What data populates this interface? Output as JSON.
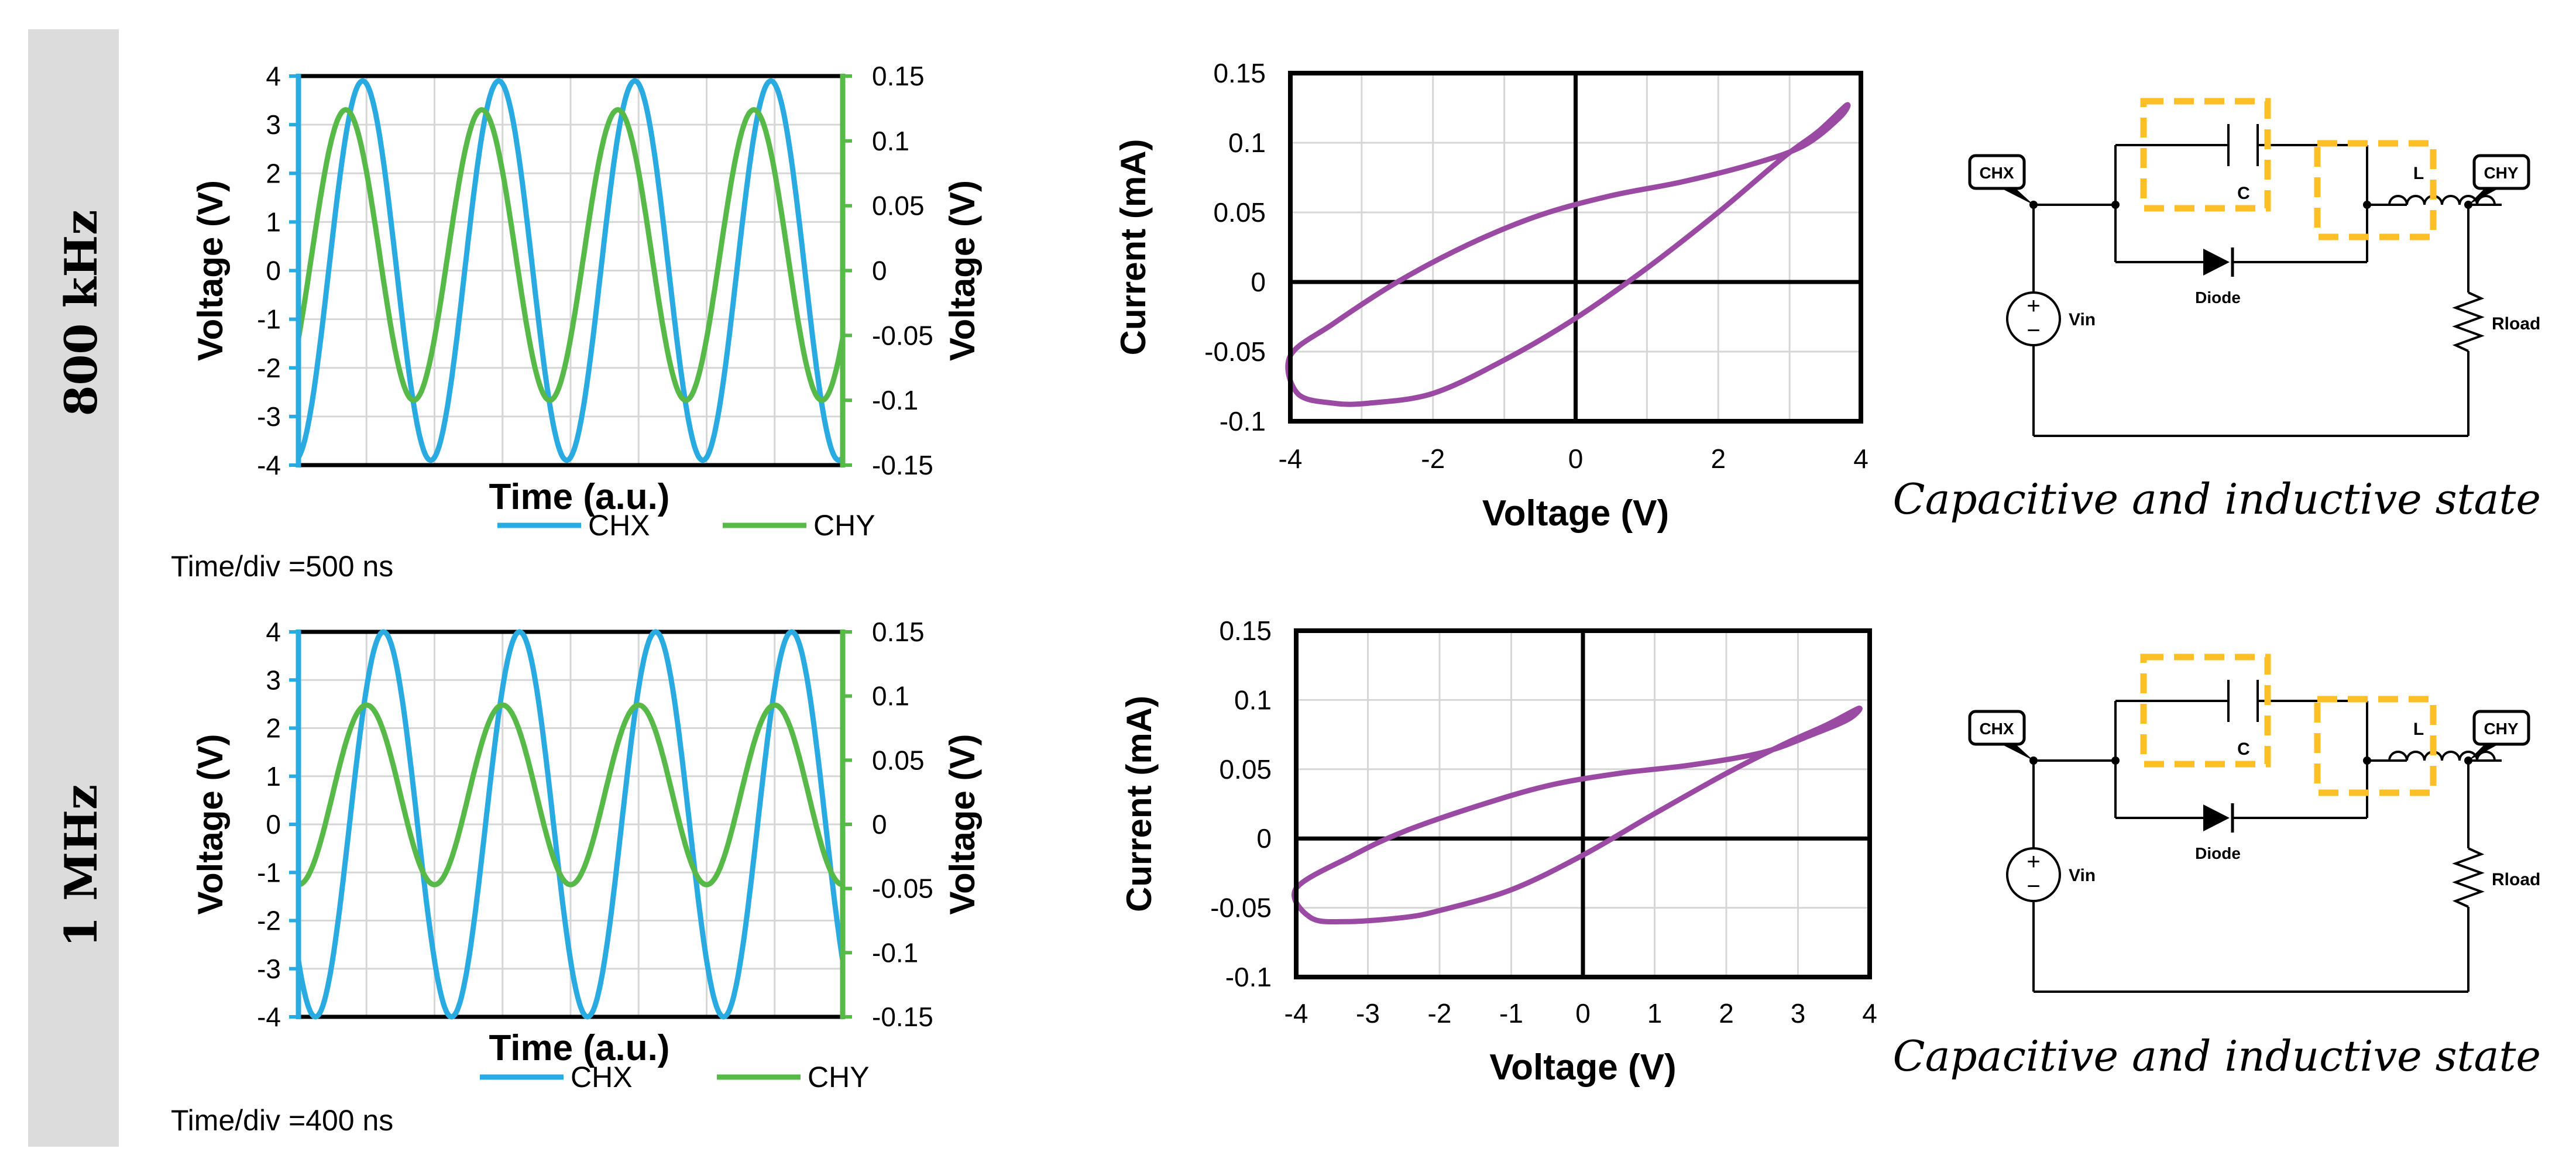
{
  "colors": {
    "chx": "#29abe2",
    "chy": "#57b947",
    "loop": "#9b4aa4",
    "highlight": "#fdbf26",
    "grid": "#d6d6d6",
    "axis": "#000000",
    "row_label_bg": "#dcdcdc"
  },
  "rows": [
    {
      "freq_label": "800 kHz",
      "time_div": "Time/div =500 ns",
      "caption": "Capacitive and inductive state"
    },
    {
      "freq_label": "1 MHz",
      "time_div": "Time/div =400 ns",
      "caption": "Capacitive and inductive state"
    }
  ],
  "schematic": {
    "probe_x": "CHX",
    "probe_y": "CHY",
    "capacitor": "C",
    "inductor": "L",
    "diode": "Diode",
    "source": "Vin",
    "load": "Rload",
    "plus": "+",
    "minus": "−"
  },
  "chart_data": [
    {
      "id": "time-800khz",
      "type": "line",
      "title": "",
      "xlabel": "Time (a.u.)",
      "ylabel_left": "Voltage (V)",
      "ylabel_right": "Voltage (V)",
      "xlim": [
        0,
        8
      ],
      "ylim_left": [
        -4,
        4
      ],
      "ylim_right": [
        -0.15,
        0.15
      ],
      "yticks_left": [
        "4",
        "3",
        "2",
        "1",
        "0",
        "-1",
        "-2",
        "-3",
        "-4"
      ],
      "yticks_right": [
        "0.15",
        "0.1",
        "0.05",
        "0",
        "-0.05",
        "-0.1",
        "-0.15"
      ],
      "legend": [
        "CHX",
        "CHY"
      ],
      "series": [
        {
          "name": "CHX",
          "axis": "left",
          "wave": {
            "amplitude": 3.9,
            "offset": 0,
            "cycles": 4,
            "phase_deg": -80
          }
        },
        {
          "name": "CHY",
          "axis": "right",
          "wave": {
            "amplitude": 0.112,
            "offset": 0.012,
            "cycles": 4,
            "phase_deg": -35
          }
        }
      ]
    },
    {
      "id": "iv-800khz",
      "type": "line",
      "title": "",
      "xlabel": "Voltage (V)",
      "ylabel": "Current (mA)",
      "xlim": [
        -4,
        4
      ],
      "ylim": [
        -0.1,
        0.15
      ],
      "xticks": [
        "-4",
        "-2",
        "0",
        "2",
        "4"
      ],
      "yticks": [
        "0.15",
        "0.1",
        "0.05",
        "0",
        "-0.05",
        "-0.1"
      ],
      "series": [
        {
          "name": "I-V loop",
          "x": [
            -4.0,
            -3.9,
            -3.4,
            -2.9,
            -2.0,
            -1.0,
            0.0,
            1.0,
            2.0,
            2.9,
            3.4,
            3.8,
            3.7,
            3.2,
            2.5,
            1.5,
            0.5,
            -0.5,
            -1.5,
            -2.5,
            -3.4,
            -4.0
          ],
          "y": [
            -0.053,
            -0.08,
            -0.087,
            -0.087,
            -0.08,
            -0.056,
            -0.026,
            0.01,
            0.05,
            0.089,
            0.108,
            0.127,
            0.118,
            0.098,
            0.085,
            0.072,
            0.062,
            0.048,
            0.027,
            0.0,
            -0.03,
            -0.053
          ]
        }
      ]
    },
    {
      "id": "time-1mhz",
      "type": "line",
      "title": "",
      "xlabel": "Time (a.u.)",
      "ylabel_left": "Voltage (V)",
      "ylabel_right": "Voltage (V)",
      "xlim": [
        0,
        8
      ],
      "ylim_left": [
        -4,
        4
      ],
      "ylim_right": [
        -0.15,
        0.15
      ],
      "yticks_left": [
        "4",
        "3",
        "2",
        "1",
        "0",
        "-1",
        "-2",
        "-3",
        "-4"
      ],
      "yticks_right": [
        "0.15",
        "0.1",
        "0.05",
        "0",
        "-0.05",
        "-0.1",
        "-0.15"
      ],
      "legend": [
        "CHX",
        "CHY"
      ],
      "series": [
        {
          "name": "CHX",
          "axis": "left",
          "wave": {
            "amplitude": 4.0,
            "offset": 0,
            "cycles": 4,
            "phase_deg": -135
          }
        },
        {
          "name": "CHY",
          "axis": "right",
          "wave": {
            "amplitude": 0.07,
            "offset": 0.023,
            "cycles": 4,
            "phase_deg": -90
          }
        }
      ]
    },
    {
      "id": "iv-1mhz",
      "type": "line",
      "title": "",
      "xlabel": "Voltage (V)",
      "ylabel": "Current (mA)",
      "xlim": [
        -4,
        4
      ],
      "ylim": [
        -0.1,
        0.15
      ],
      "xticks": [
        "-4",
        "-3",
        "-2",
        "-1",
        "0",
        "1",
        "2",
        "3",
        "4"
      ],
      "yticks": [
        "0.15",
        "0.1",
        "0.05",
        "0",
        "-0.05",
        "-0.1"
      ],
      "series": [
        {
          "name": "I-V loop",
          "x": [
            -4.0,
            -3.8,
            -3.3,
            -2.5,
            -2.0,
            -1.0,
            0.0,
            1.0,
            2.0,
            2.8,
            3.4,
            3.85,
            3.7,
            3.2,
            2.5,
            1.5,
            0.5,
            -0.5,
            -1.5,
            -2.5,
            -3.2,
            -4.0
          ],
          "y": [
            -0.036,
            -0.057,
            -0.06,
            -0.057,
            -0.052,
            -0.037,
            -0.012,
            0.018,
            0.047,
            0.068,
            0.082,
            0.094,
            0.086,
            0.075,
            0.062,
            0.053,
            0.047,
            0.038,
            0.023,
            0.005,
            -0.012,
            -0.036
          ]
        }
      ]
    }
  ]
}
